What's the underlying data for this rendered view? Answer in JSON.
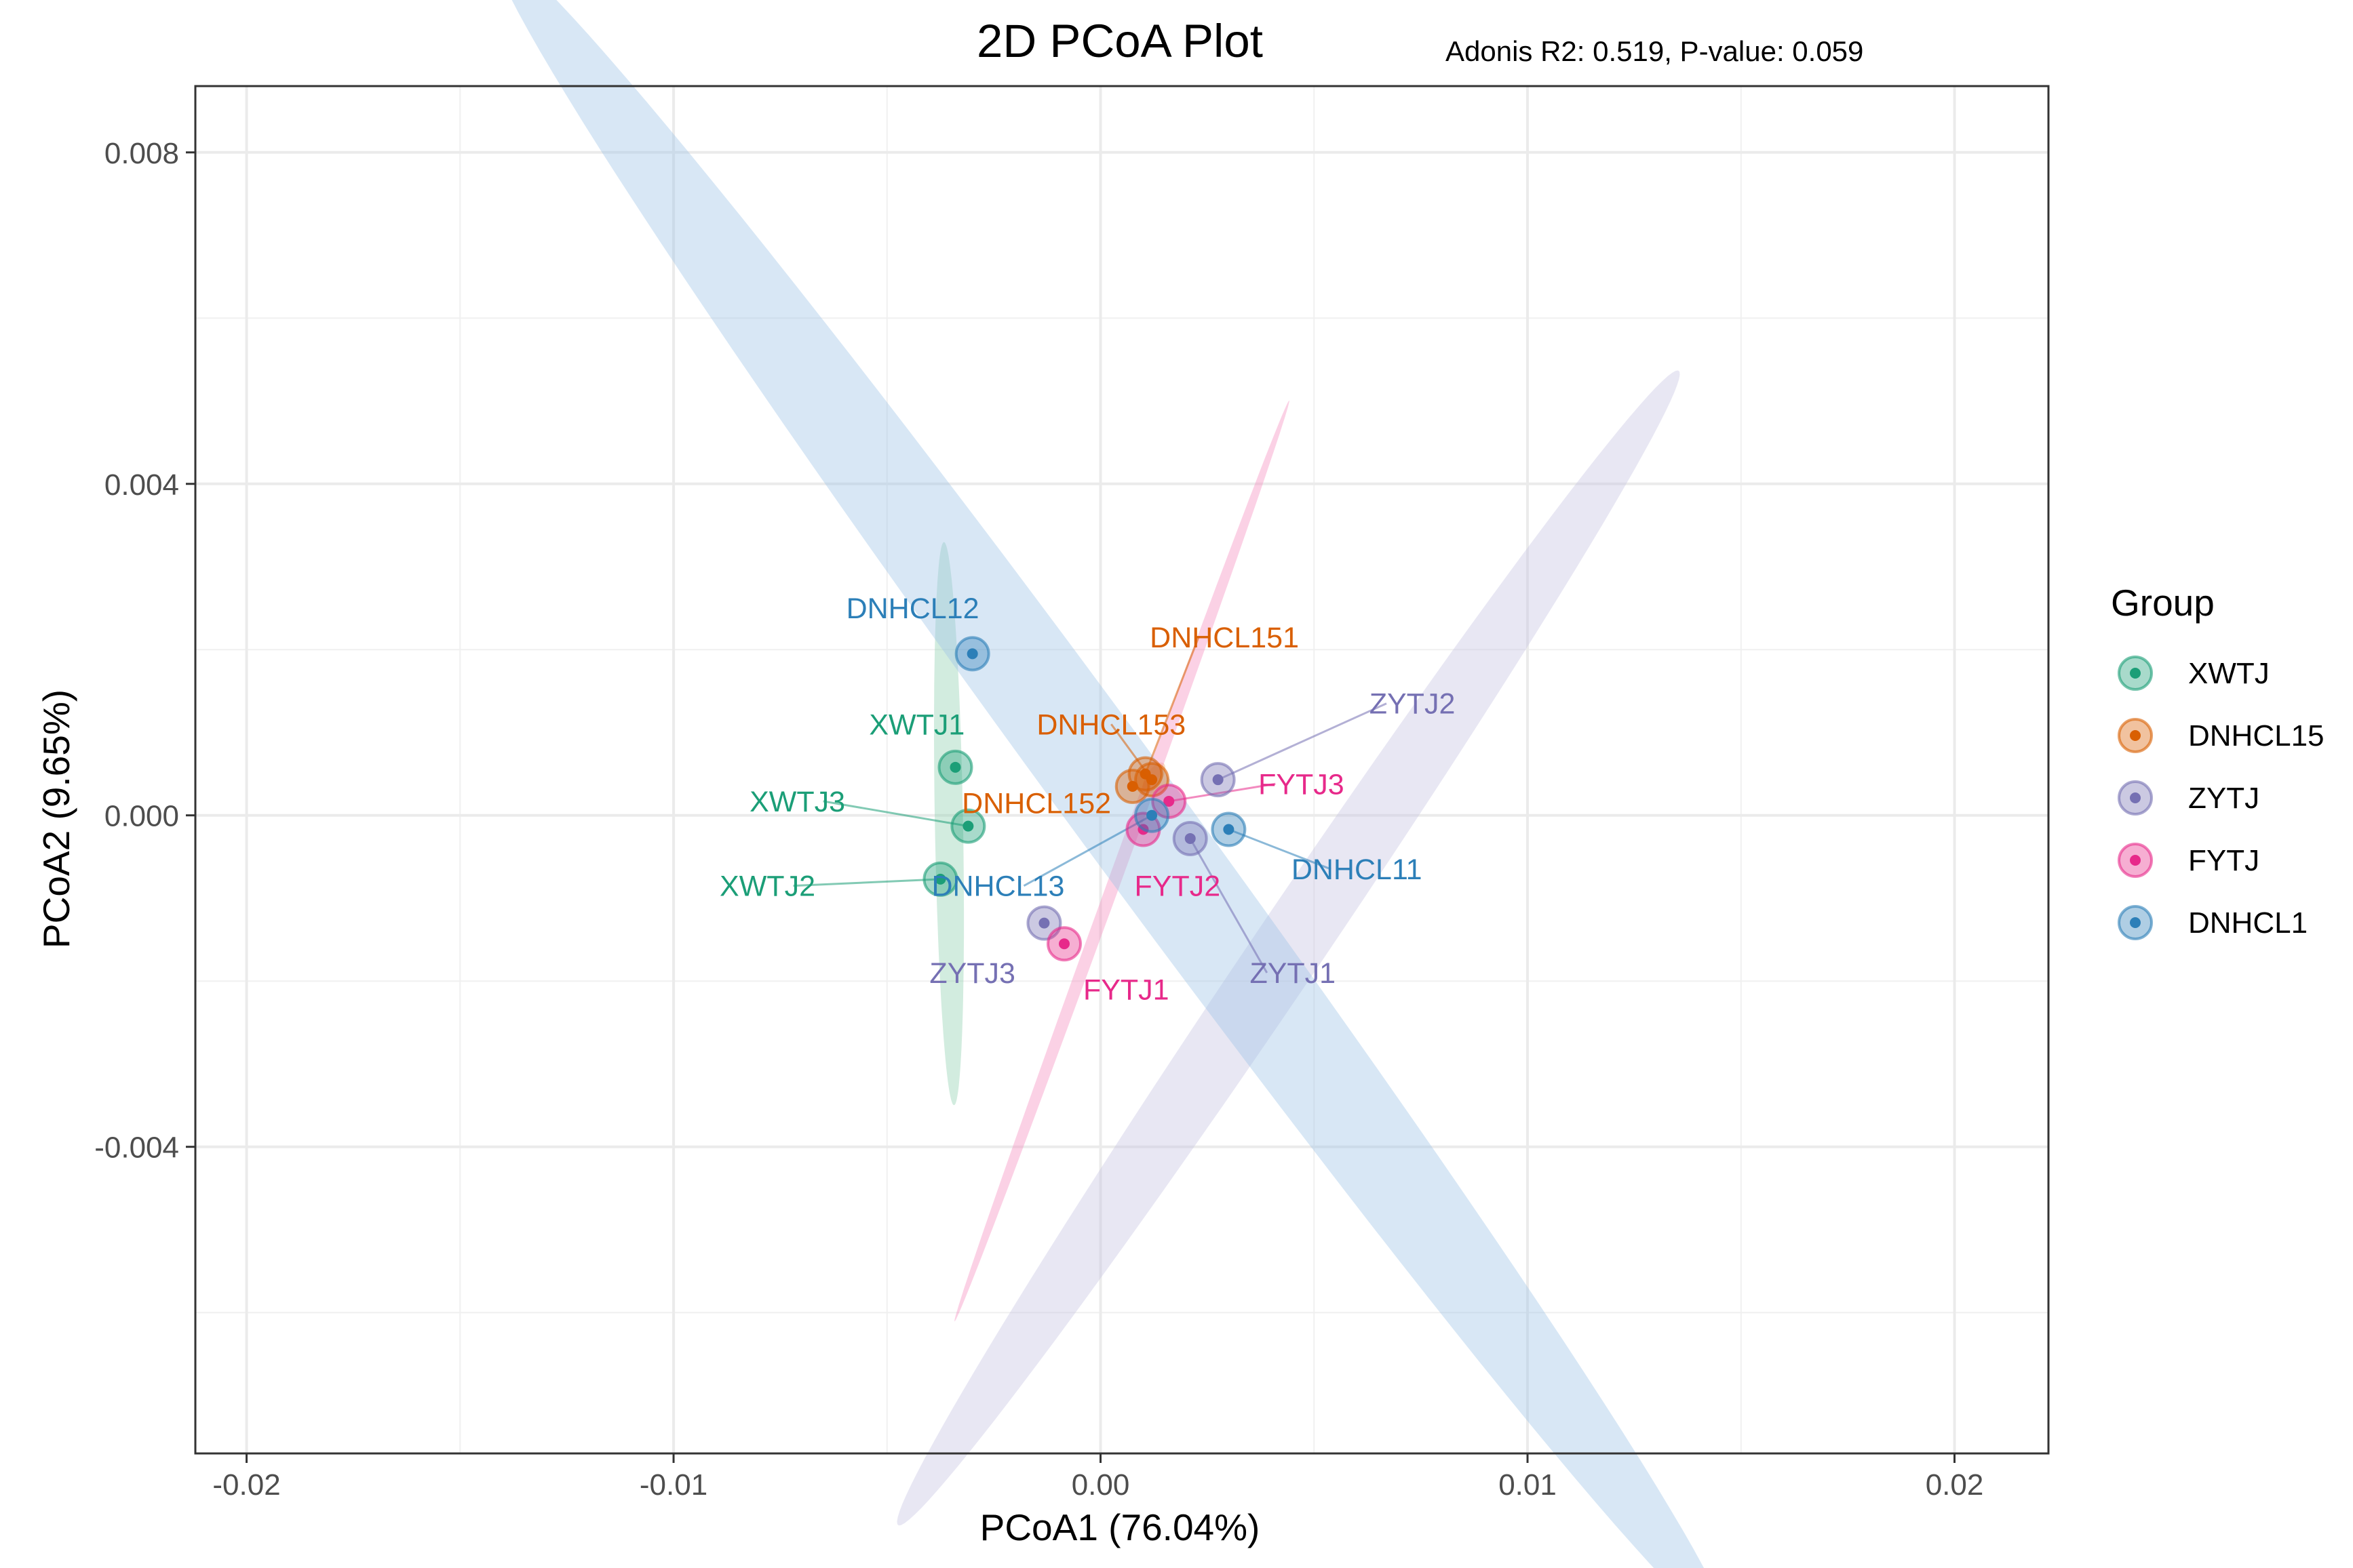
{
  "chart_data": {
    "type": "scatter",
    "title": "2D PCoA Plot",
    "subtitle": "Adonis R2: 0.519, P-value: 0.059",
    "xlabel": "PCoA1 (76.04%)",
    "ylabel": "PCoA2 (9.65%)",
    "xlim": [
      -0.0212,
      0.0222
    ],
    "ylim": [
      -0.0077,
      0.0088
    ],
    "x_ticks": [
      -0.02,
      -0.01,
      0.0,
      0.01,
      0.02
    ],
    "x_tick_labels": [
      "-0.02",
      "-0.01",
      "0.00",
      "0.01",
      "0.02"
    ],
    "y_ticks": [
      -0.004,
      0.0,
      0.004,
      0.008
    ],
    "y_tick_labels": [
      "-0.004",
      "0.000",
      "0.004",
      "0.008"
    ],
    "grid": true,
    "legend": {
      "title": "Group",
      "position": "right",
      "entries": [
        {
          "name": "XWTJ",
          "color": "#1b9e77"
        },
        {
          "name": "DNHCL15",
          "color": "#d95f02"
        },
        {
          "name": "ZYTJ",
          "color": "#7570b3"
        },
        {
          "name": "FYTJ",
          "color": "#e7298a"
        },
        {
          "name": "DNHCL1",
          "color": "#2c7fb8"
        }
      ]
    },
    "series": [
      {
        "name": "XWTJ",
        "color": "#1b9e77",
        "fill": "#8fcfb0",
        "ellipse": {
          "cx": -0.00355,
          "cy": -0.0001,
          "rx": 0.0034,
          "ry": 0.00033,
          "angle_deg": -88.0
        },
        "points": [
          {
            "label": "XWTJ1",
            "x": -0.0034,
            "y": 0.00058,
            "lx": -0.0043,
            "ly": 0.0011,
            "leader": false
          },
          {
            "label": "XWTJ3",
            "x": -0.0031,
            "y": -0.00013,
            "lx": -0.0071,
            "ly": 0.00017,
            "leader": true
          },
          {
            "label": "XWTJ2",
            "x": -0.00375,
            "y": -0.00077,
            "lx": -0.0078,
            "ly": -0.00085,
            "leader": true
          }
        ]
      },
      {
        "name": "DNHCL15",
        "color": "#d95f02",
        "fill": "#f0a868",
        "ellipse": {
          "cx": 0.00125,
          "cy": 0.00045,
          "rx": 0.0003,
          "ry": 0.00013,
          "angle_deg": 30.0
        },
        "points": [
          {
            "label": "DNHCL151",
            "x": 0.00105,
            "y": 0.0005,
            "lx": 0.0029,
            "ly": 0.00215,
            "leader": true
          },
          {
            "label": "DNHCL153",
            "x": 0.0012,
            "y": 0.00043,
            "lx": 0.00025,
            "ly": 0.0011,
            "leader": true
          },
          {
            "label": "DNHCL152",
            "x": 0.00075,
            "y": 0.00035,
            "lx": -0.0015,
            "ly": 0.00015,
            "leader": false
          }
        ]
      },
      {
        "name": "ZYTJ",
        "color": "#7570b3",
        "fill": "#c6c3e0",
        "ellipse": {
          "cx": 0.0044,
          "cy": -0.0016,
          "rx": 0.0115,
          "ry": 0.0006,
          "angle_deg": 37.2
        },
        "points": [
          {
            "label": "ZYTJ2",
            "x": 0.00275,
            "y": 0.00043,
            "lx": 0.0073,
            "ly": 0.00135,
            "leader": true
          },
          {
            "label": "ZYTJ1",
            "x": 0.0021,
            "y": -0.00028,
            "lx": 0.0045,
            "ly": -0.0019,
            "leader": true
          },
          {
            "label": "ZYTJ3",
            "x": -0.00132,
            "y": -0.0013,
            "lx": -0.003,
            "ly": -0.0019,
            "leader": false
          }
        ]
      },
      {
        "name": "FYTJ",
        "color": "#e7298a",
        "fill": "#f48cbf",
        "ellipse": {
          "cx": 0.0005,
          "cy": -0.00055,
          "rx": 0.0068,
          "ry": 0.00013,
          "angle_deg": 54.8
        },
        "points": [
          {
            "label": "FYTJ3",
            "x": 0.0016,
            "y": 0.00017,
            "lx": 0.0047,
            "ly": 0.00038,
            "leader": true
          },
          {
            "label": "FYTJ2",
            "x": 0.001,
            "y": -0.00017,
            "lx": 0.0018,
            "ly": -0.00085,
            "leader": false
          },
          {
            "label": "FYTJ1",
            "x": -0.00085,
            "y": -0.00155,
            "lx": 0.0006,
            "ly": -0.0021,
            "leader": false
          }
        ]
      },
      {
        "name": "DNHCL1",
        "color": "#2c7fb8",
        "fill": "#9ec4e6",
        "ellipse": {
          "cx": 0.00025,
          "cy": 0.0003,
          "rx": 0.0176,
          "ry": 0.0009,
          "angle_deg": -35.0
        },
        "points": [
          {
            "label": "DNHCL12",
            "x": -0.003,
            "y": 0.00195,
            "lx": -0.0044,
            "ly": 0.0025,
            "leader": false
          },
          {
            "label": "DNHCL11",
            "x": 0.003,
            "y": -0.00017,
            "lx": 0.006,
            "ly": -0.00065,
            "leader": true
          },
          {
            "label": "DNHCL13",
            "x": 0.0012,
            "y": 0.0,
            "lx": -0.0024,
            "ly": -0.00085,
            "leader": true
          }
        ]
      }
    ]
  }
}
